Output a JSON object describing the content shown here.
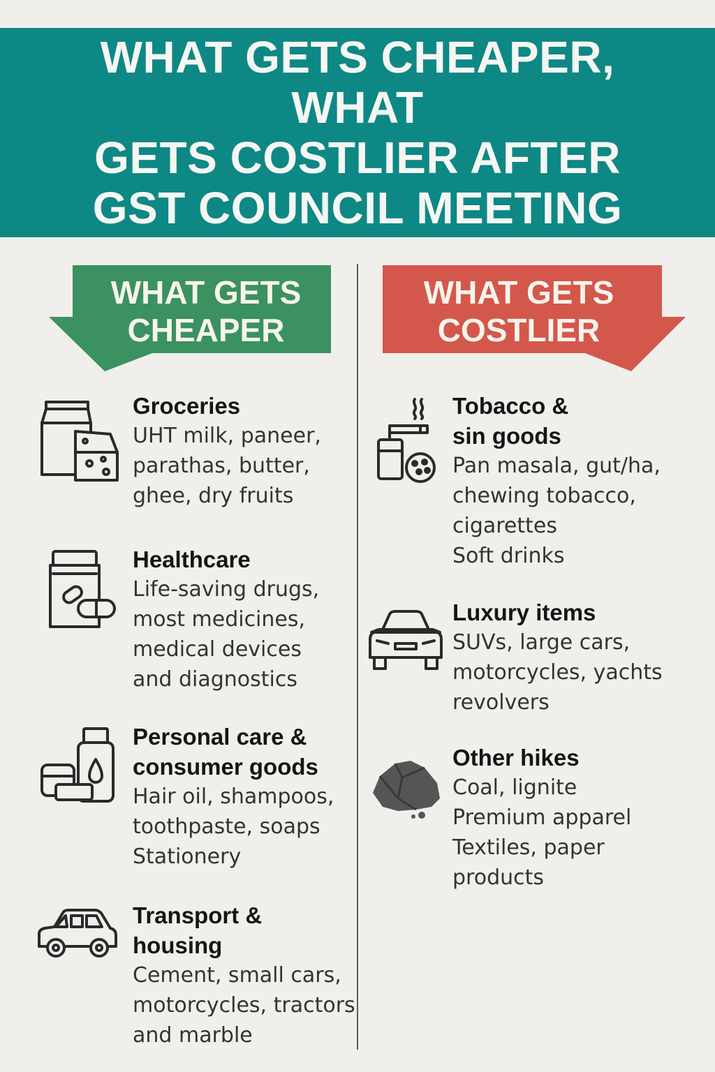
{
  "header": {
    "title_lines": [
      "WHAT GETS CHEAPER, WHAT",
      "GETS COSTLIER AFTER",
      "GST COUNCIL MEETING"
    ],
    "background_color": "#0e8885"
  },
  "cheaper": {
    "banner_lines": [
      "WHAT GETS",
      "CHEAPER"
    ],
    "color": "#3b9160",
    "items": [
      {
        "icon": "grocery-icon",
        "title": "Groceries",
        "desc_lines": [
          "UHT milk, paneer,",
          "parathas, butter,",
          "ghee, dry fruits"
        ]
      },
      {
        "icon": "medicine-jar-icon",
        "title": "Healthcare",
        "desc_lines": [
          "Life-saving drugs,",
          "most medicines,",
          "medical devices",
          "and diagnostics"
        ]
      },
      {
        "icon": "personal-care-icon",
        "title_lines": [
          "Personal care &",
          "consumer goods"
        ],
        "desc_lines": [
          "Hair oil, shampoos,",
          "toothpaste, soaps",
          "Stationery"
        ]
      },
      {
        "icon": "car-icon",
        "title_lines": [
          "Transport &",
          "housing"
        ],
        "desc_lines": [
          "Cement, small cars,",
          "motorcycles, tractors",
          "and marble"
        ]
      }
    ]
  },
  "costlier": {
    "banner_lines": [
      "WHAT GETS",
      "COSTLIER"
    ],
    "color": "#d4574c",
    "items": [
      {
        "icon": "tobacco-icon",
        "title_lines": [
          "Tobacco &",
          "sin goods"
        ],
        "desc_lines": [
          "Pan masala, gut/ha,",
          "chewing tobacco,",
          "cigarettes",
          "Soft drinks"
        ]
      },
      {
        "icon": "luxury-car-icon",
        "title": "Luxury items",
        "desc_lines": [
          "SUVs, large cars,",
          "motorcycles, yachts",
          "revolvers"
        ]
      },
      {
        "icon": "coal-icon",
        "title": "Other hikes",
        "desc_lines": [
          "Coal, lignite",
          "Premium apparel",
          "Textiles, paper",
          "products"
        ]
      }
    ]
  }
}
